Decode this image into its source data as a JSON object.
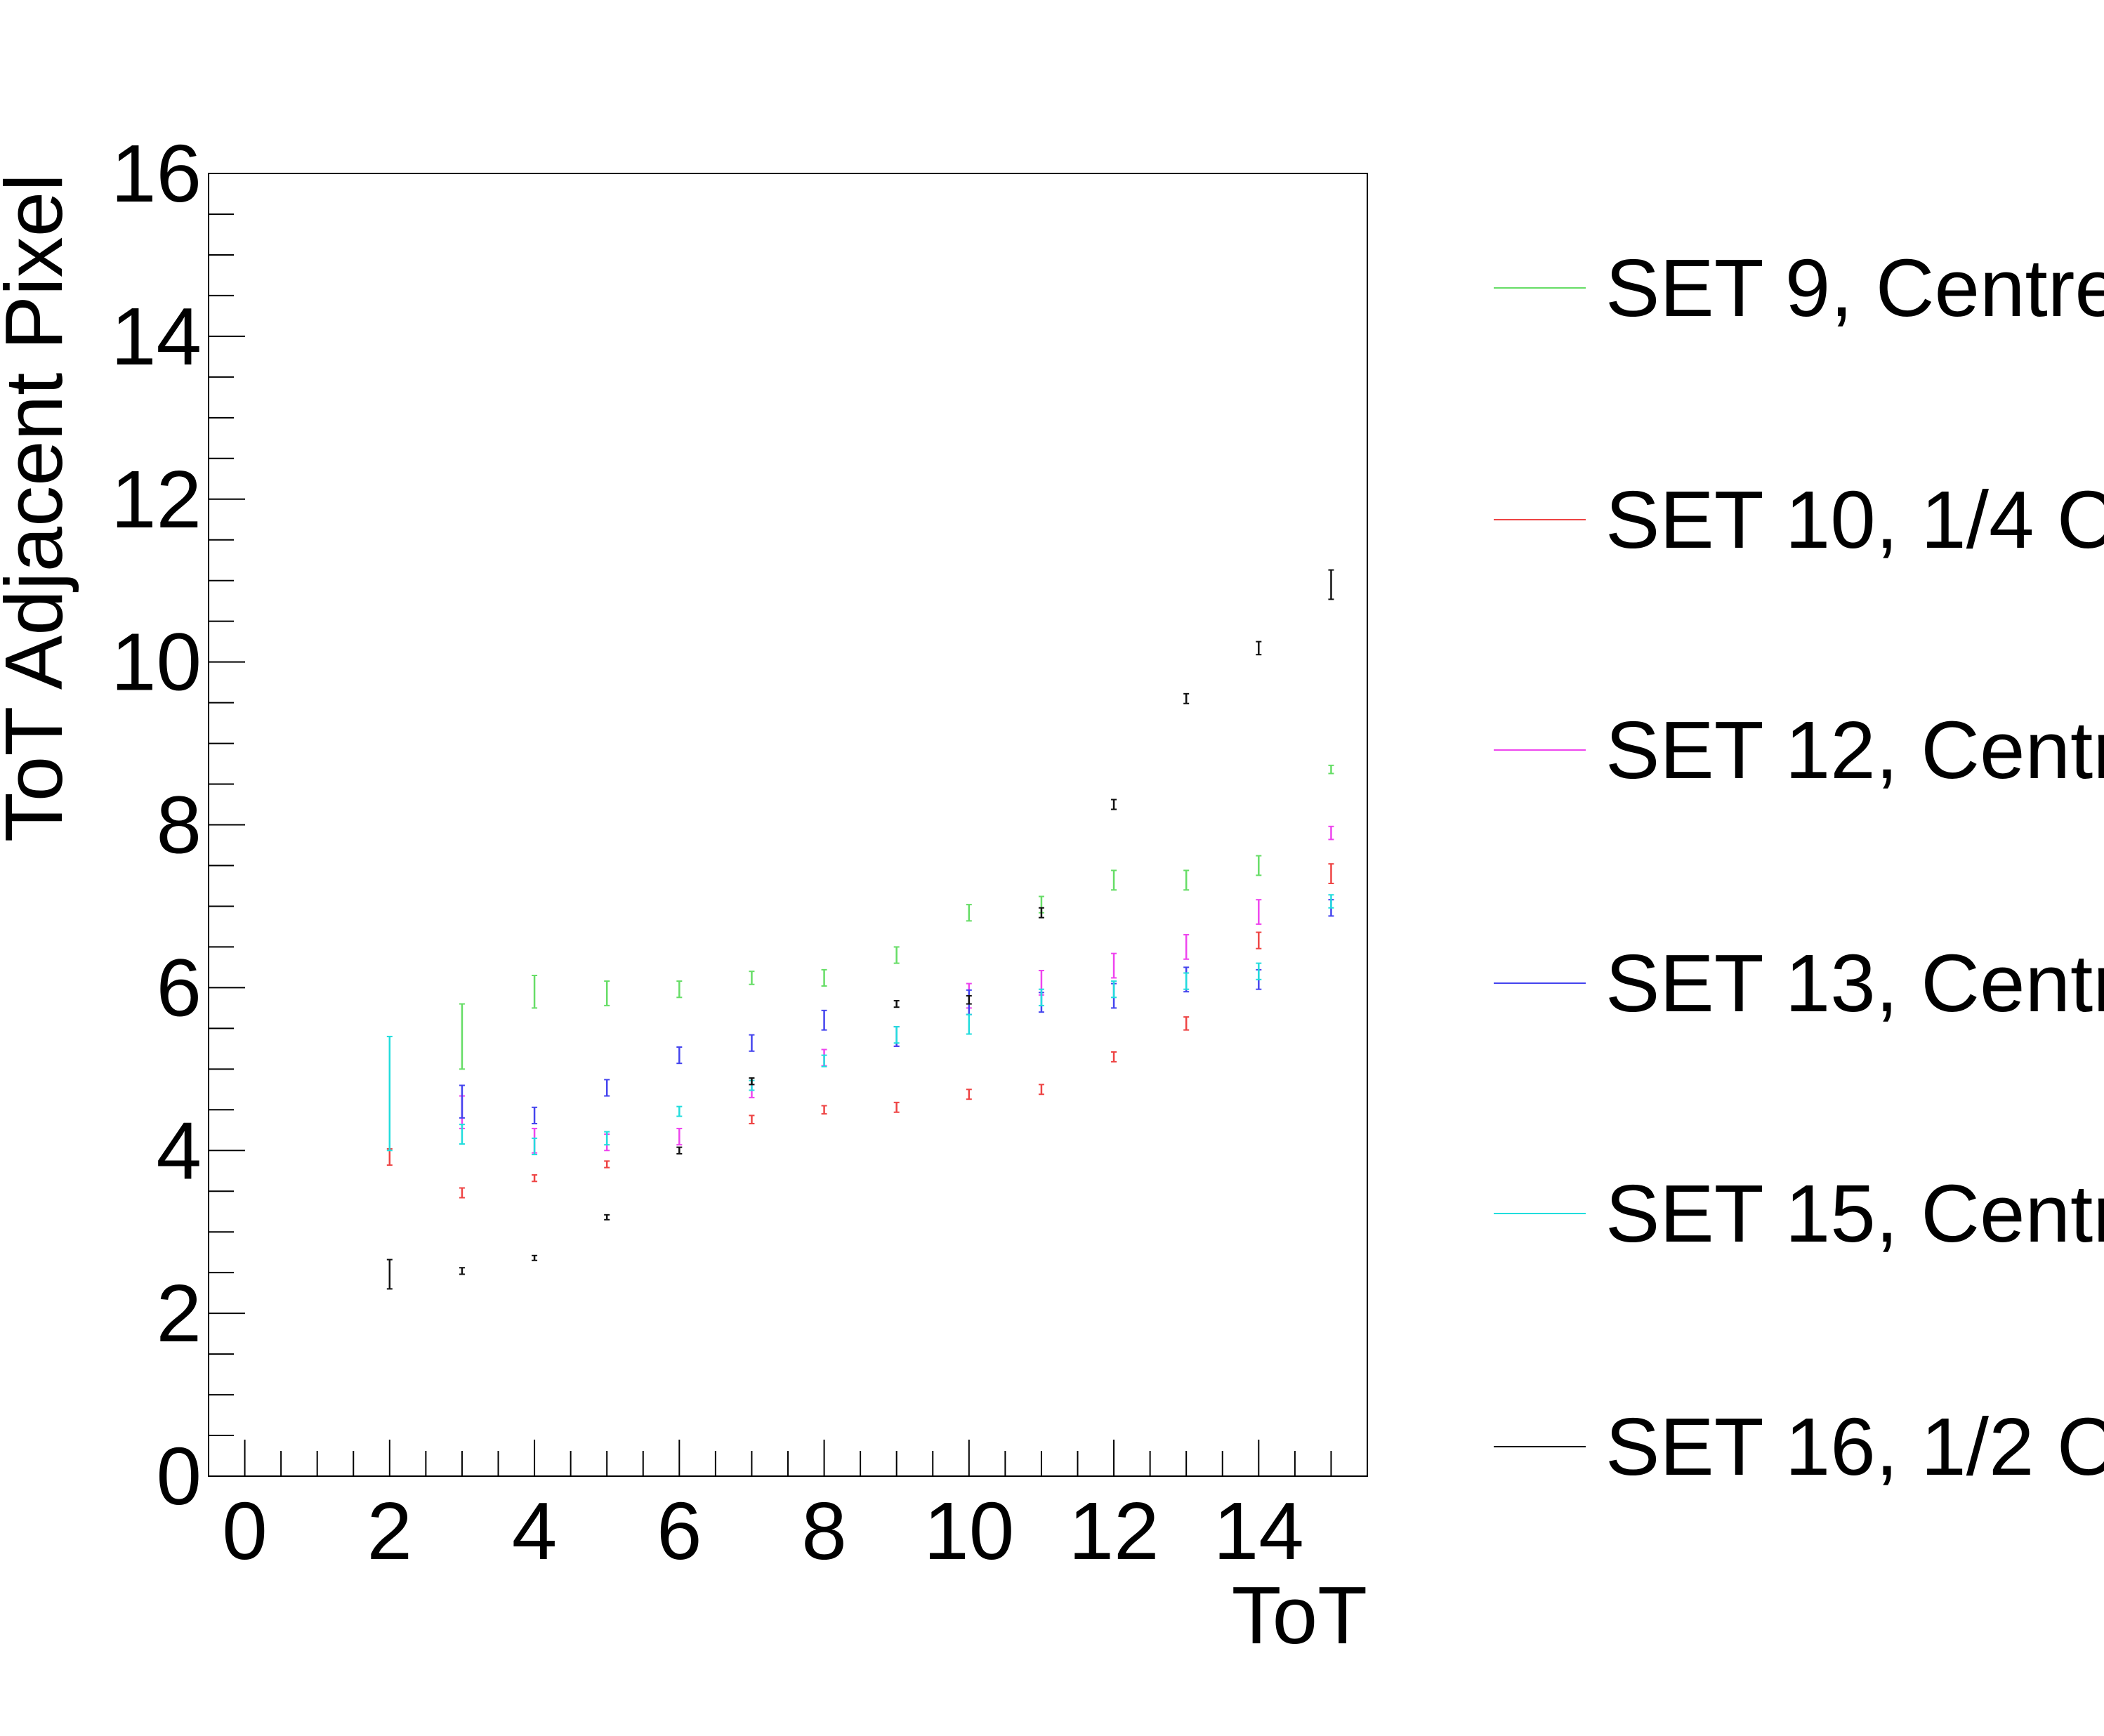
{
  "chart_data": {
    "type": "scatter",
    "xlabel": "ToT",
    "ylabel": "ToT Adjacent Pixel",
    "xlim": [
      -0.5,
      15.5
    ],
    "ylim": [
      0,
      16
    ],
    "x_ticks": [
      "0",
      "2",
      "4",
      "6",
      "8",
      "10",
      "12",
      "14"
    ],
    "y_ticks": [
      "0",
      "2",
      "4",
      "6",
      "8",
      "10",
      "12",
      "14",
      "16"
    ],
    "grid": false,
    "legend_position": "right",
    "series": [
      {
        "name": "SET 9, Centre",
        "color": "#66dd66",
        "x": [
          3,
          4,
          5,
          6,
          7,
          8,
          9,
          10,
          11,
          12,
          13,
          14,
          15
        ],
        "y": [
          5.4,
          5.95,
          5.93,
          5.98,
          6.12,
          6.12,
          6.4,
          6.92,
          7.02,
          7.32,
          7.32,
          7.5,
          8.68
        ],
        "err": [
          0.4,
          0.2,
          0.15,
          0.1,
          0.08,
          0.1,
          0.1,
          0.1,
          0.1,
          0.12,
          0.12,
          0.12,
          0.05
        ]
      },
      {
        "name": "SET 10, 1/4 C",
        "color": "#ee4444",
        "x": [
          2,
          3,
          4,
          5,
          7,
          8,
          9,
          10,
          11,
          12,
          13,
          14,
          15
        ],
        "y": [
          3.92,
          3.48,
          3.66,
          3.83,
          4.38,
          4.5,
          4.53,
          4.69,
          4.75,
          5.15,
          5.56,
          6.58,
          7.4
        ],
        "err": [
          0.1,
          0.06,
          0.04,
          0.04,
          0.05,
          0.05,
          0.06,
          0.06,
          0.06,
          0.06,
          0.08,
          0.1,
          0.12
        ]
      },
      {
        "name": "SET 12, Centr",
        "color": "#ee44ee",
        "x": [
          3,
          4,
          5,
          6,
          7,
          8,
          9,
          10,
          11,
          12,
          13,
          14,
          15
        ],
        "y": [
          4.47,
          4.12,
          4.1,
          4.17,
          4.73,
          5.14,
          5.4,
          5.9,
          6.06,
          6.27,
          6.5,
          6.93,
          7.9
        ],
        "err": [
          0.2,
          0.15,
          0.1,
          0.1,
          0.08,
          0.1,
          0.12,
          0.15,
          0.15,
          0.15,
          0.15,
          0.15,
          0.08
        ]
      },
      {
        "name": "SET 13, Centr",
        "color": "#4444ee",
        "x": [
          3,
          4,
          5,
          6,
          7,
          8,
          9,
          10,
          11,
          12,
          13,
          14,
          15
        ],
        "y": [
          4.6,
          4.43,
          4.77,
          5.17,
          5.32,
          5.6,
          5.4,
          5.82,
          5.82,
          5.9,
          6.1,
          6.1,
          6.98
        ],
        "err": [
          0.2,
          0.1,
          0.1,
          0.1,
          0.1,
          0.12,
          0.12,
          0.15,
          0.12,
          0.15,
          0.15,
          0.12,
          0.1
        ]
      },
      {
        "name": "SET 15, Centr",
        "color": "#22dddd",
        "x": [
          2,
          3,
          4,
          5,
          6,
          7,
          8,
          9,
          10,
          11,
          12,
          13,
          14,
          15
        ],
        "y": [
          4.7,
          4.2,
          4.05,
          4.15,
          4.48,
          4.8,
          5.1,
          5.42,
          5.55,
          5.88,
          5.98,
          6.08,
          6.2,
          7.06
        ],
        "err": [
          0.7,
          0.12,
          0.1,
          0.08,
          0.06,
          0.06,
          0.07,
          0.1,
          0.12,
          0.1,
          0.1,
          0.1,
          0.1,
          0.08
        ]
      },
      {
        "name": "SET 16, 1/2 C",
        "color": "#111111",
        "x": [
          2,
          3,
          4,
          5,
          6,
          7,
          9,
          10,
          11,
          12,
          13,
          14,
          15
        ],
        "y": [
          2.48,
          2.52,
          2.68,
          3.18,
          4.0,
          4.85,
          5.8,
          5.85,
          6.92,
          8.25,
          9.55,
          10.17,
          10.95
        ],
        "err": [
          0.18,
          0.04,
          0.03,
          0.03,
          0.04,
          0.04,
          0.04,
          0.05,
          0.06,
          0.06,
          0.06,
          0.08,
          0.18
        ]
      }
    ]
  }
}
